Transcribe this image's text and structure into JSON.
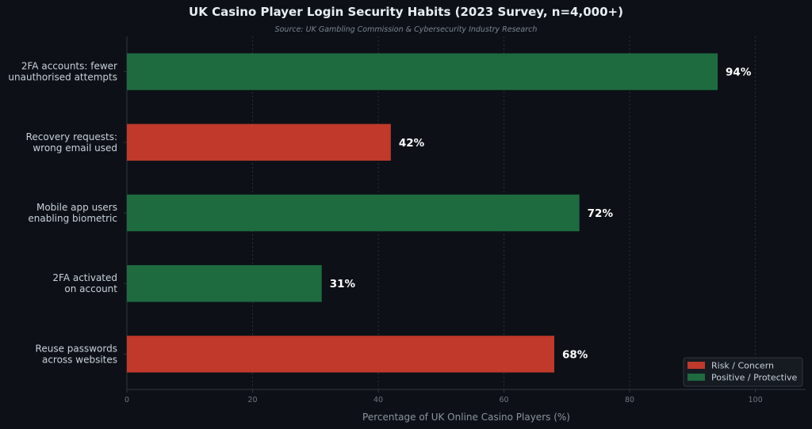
{
  "chart_data": {
    "type": "bar",
    "orientation": "horizontal",
    "title": "UK Casino Player Login Security Habits (2023 Survey, n=4,000+)",
    "subtitle": "Source: UK Gambling Commission & Cybersecurity Industry Research",
    "xlabel": "Percentage of UK Online Casino Players (%)",
    "ylabel": "",
    "xlim": [
      0,
      108
    ],
    "xticks": [
      0,
      20,
      40,
      60,
      80,
      100
    ],
    "grid": true,
    "legend_position": "bottom-right",
    "categories": [
      [
        "2FA accounts: fewer",
        "unauthorised attempts"
      ],
      [
        "Recovery requests:",
        "wrong email used"
      ],
      [
        "Mobile app users",
        "enabling biometric"
      ],
      [
        "2FA activated",
        "on account"
      ],
      [
        "Reuse passwords",
        "across websites"
      ]
    ],
    "values": [
      94,
      42,
      72,
      31,
      68
    ],
    "value_labels": [
      "94%",
      "42%",
      "72%",
      "31%",
      "68%"
    ],
    "bar_group": [
      "positive",
      "risk",
      "positive",
      "positive",
      "risk"
    ],
    "legend": [
      {
        "key": "risk",
        "label": "Risk / Concern",
        "color": "#c0392b"
      },
      {
        "key": "positive",
        "label": "Positive / Protective",
        "color": "#1e6b40"
      }
    ]
  }
}
